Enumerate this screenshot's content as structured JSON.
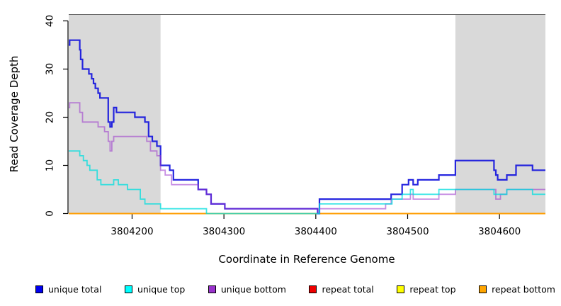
{
  "chart_data": {
    "type": "line",
    "subtype": "step-coverage",
    "title": "",
    "xlabel": "Coordinate in Reference Genome",
    "ylabel": "Read Coverage Depth",
    "xlim": [
      3804131,
      3804650
    ],
    "ylim": [
      0,
      41
    ],
    "x_ticks": [
      3804200,
      3804300,
      3804400,
      3804500,
      3804600
    ],
    "y_ticks": [
      0,
      10,
      20,
      30,
      40
    ],
    "grid": false,
    "band_color": "#d9d9d9",
    "shaded_regions": [
      {
        "x0": 3804131,
        "x1": 3804231
      },
      {
        "x0": 3804552,
        "x1": 3804650
      }
    ],
    "series": [
      {
        "name": "repeat total",
        "color": "#dd0000",
        "opacity": 0.9,
        "width": 1.5,
        "points": [
          [
            3804131,
            0
          ],
          [
            3804650,
            0
          ]
        ]
      },
      {
        "name": "repeat top",
        "color": "#ffff00",
        "opacity": 0.9,
        "width": 1.5,
        "points": [
          [
            3804131,
            0
          ],
          [
            3804650,
            0
          ]
        ]
      },
      {
        "name": "repeat bottom",
        "color": "#ff9d00",
        "opacity": 1,
        "width": 2,
        "points": [
          [
            3804131,
            0
          ],
          [
            3804650,
            0
          ]
        ]
      },
      {
        "name": "unique total",
        "color": "#1515dd",
        "opacity": 0.92,
        "width": 2.2,
        "points": [
          [
            3804131,
            35
          ],
          [
            3804132,
            36
          ],
          [
            3804143,
            34
          ],
          [
            3804144,
            32
          ],
          [
            3804146,
            30
          ],
          [
            3804153,
            29
          ],
          [
            3804156,
            28
          ],
          [
            3804158,
            27
          ],
          [
            3804160,
            26
          ],
          [
            3804163,
            25
          ],
          [
            3804165,
            24
          ],
          [
            3804174,
            19
          ],
          [
            3804176,
            18
          ],
          [
            3804178,
            19
          ],
          [
            3804180,
            22
          ],
          [
            3804183,
            21
          ],
          [
            3804203,
            20
          ],
          [
            3804214,
            19
          ],
          [
            3804218,
            16
          ],
          [
            3804222,
            15
          ],
          [
            3804227,
            14
          ],
          [
            3804231,
            10
          ],
          [
            3804241,
            9
          ],
          [
            3804245,
            7
          ],
          [
            3804272,
            5
          ],
          [
            3804281,
            4
          ],
          [
            3804286,
            2
          ],
          [
            3804301,
            1
          ],
          [
            3804402,
            0
          ],
          [
            3804404,
            3
          ],
          [
            3804482,
            4
          ],
          [
            3804494,
            6
          ],
          [
            3804501,
            7
          ],
          [
            3804506,
            6
          ],
          [
            3804511,
            7
          ],
          [
            3804534,
            8
          ],
          [
            3804552,
            11
          ],
          [
            3804594,
            9
          ],
          [
            3804596,
            8
          ],
          [
            3804598,
            7
          ],
          [
            3804608,
            8
          ],
          [
            3804618,
            10
          ],
          [
            3804636,
            9
          ],
          [
            3804650,
            9
          ]
        ]
      },
      {
        "name": "unique bottom",
        "color": "#9932cc",
        "opacity": 0.55,
        "width": 1.8,
        "points": [
          [
            3804131,
            22
          ],
          [
            3804132,
            23
          ],
          [
            3804143,
            21
          ],
          [
            3804146,
            19
          ],
          [
            3804163,
            18
          ],
          [
            3804170,
            17
          ],
          [
            3804174,
            15
          ],
          [
            3804176,
            13
          ],
          [
            3804178,
            15
          ],
          [
            3804180,
            16
          ],
          [
            3804216,
            15
          ],
          [
            3804220,
            13
          ],
          [
            3804227,
            12
          ],
          [
            3804231,
            9
          ],
          [
            3804236,
            8
          ],
          [
            3804243,
            6
          ],
          [
            3804272,
            5
          ],
          [
            3804281,
            4
          ],
          [
            3804286,
            2
          ],
          [
            3804301,
            1
          ],
          [
            3804402,
            0
          ],
          [
            3804404,
            1
          ],
          [
            3804476,
            2
          ],
          [
            3804482,
            3
          ],
          [
            3804503,
            4
          ],
          [
            3804506,
            3
          ],
          [
            3804534,
            4
          ],
          [
            3804552,
            5
          ],
          [
            3804596,
            3
          ],
          [
            3804601,
            4
          ],
          [
            3804608,
            5
          ],
          [
            3804650,
            5
          ]
        ]
      },
      {
        "name": "unique top",
        "color": "#00dddd",
        "opacity": 0.75,
        "width": 1.8,
        "points": [
          [
            3804131,
            13
          ],
          [
            3804143,
            12
          ],
          [
            3804147,
            11
          ],
          [
            3804151,
            10
          ],
          [
            3804154,
            9
          ],
          [
            3804162,
            7
          ],
          [
            3804166,
            6
          ],
          [
            3804180,
            7
          ],
          [
            3804185,
            6
          ],
          [
            3804195,
            5
          ],
          [
            3804209,
            3
          ],
          [
            3804214,
            2
          ],
          [
            3804231,
            1
          ],
          [
            3804281,
            0
          ],
          [
            3804404,
            2
          ],
          [
            3804483,
            3
          ],
          [
            3804494,
            4
          ],
          [
            3804503,
            5
          ],
          [
            3804506,
            4
          ],
          [
            3804534,
            5
          ],
          [
            3804594,
            4
          ],
          [
            3804608,
            5
          ],
          [
            3804636,
            4
          ],
          [
            3804650,
            4
          ]
        ]
      }
    ],
    "legend": {
      "position": "bottom",
      "items": [
        {
          "label": "unique total",
          "color": "#0000ee"
        },
        {
          "label": "unique top",
          "color": "#00ffff"
        },
        {
          "label": "unique bottom",
          "color": "#9932cc"
        },
        {
          "label": "repeat total",
          "color": "#ee0000"
        },
        {
          "label": "repeat top",
          "color": "#ffff00"
        },
        {
          "label": "repeat bottom",
          "color": "#ffa500"
        }
      ]
    }
  }
}
